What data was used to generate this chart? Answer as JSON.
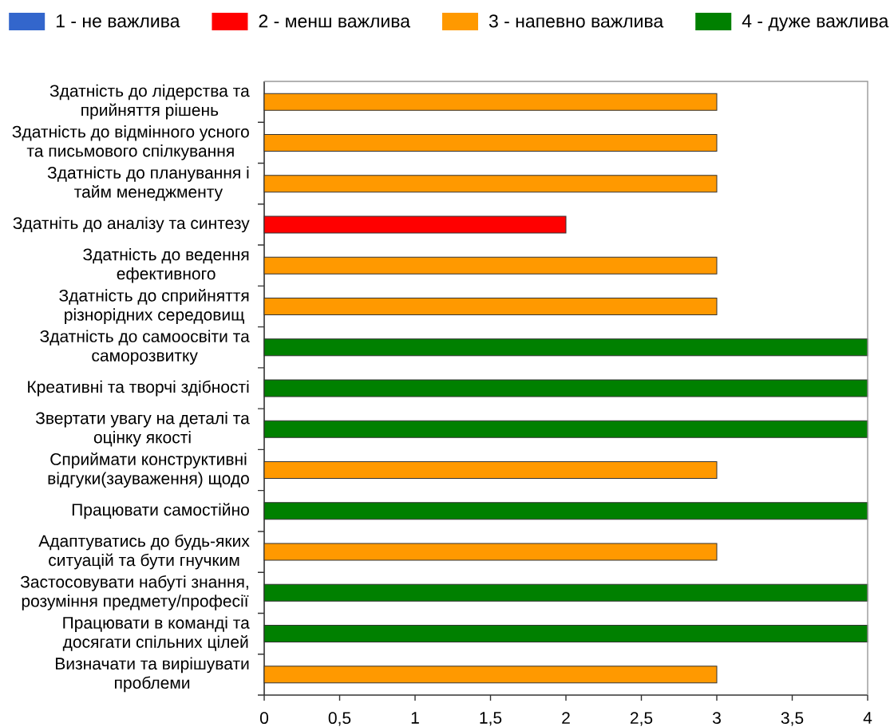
{
  "chart_data": {
    "type": "bar",
    "orientation": "horizontal",
    "categories": [
      "Здатність до лідерства та прийняття рішень",
      "Здатність до відмінного усного та письмового спілкування",
      "Здатність до планування і тайм менеджменту",
      "Здатніть до аналізу та синтезу",
      "Здатність до ведення ефективного",
      "Здатність до сприйняття різнорідних середовищ",
      "Здатність до самоосвіти та саморозвитку",
      "Креативні та творчі здібності",
      "Звертати увагу на деталі та оцінку якості",
      "Сприймати конструктивні відгуки(зауваження) щодо",
      "Працювати самостійно",
      "Адаптуватись до будь-яких ситуацій та бути гнучким",
      "Застосовувати набуті знання, розуміння предмету/професії",
      "Працювати в команді та досягати спільних цілей",
      "Визначати та вирішувати проблеми"
    ],
    "series": [
      {
        "name": "1 - не важлива",
        "color": "#3366cc",
        "values": [
          null,
          null,
          null,
          null,
          null,
          null,
          null,
          null,
          null,
          null,
          null,
          null,
          null,
          null,
          null
        ]
      },
      {
        "name": "2 - менш важлива",
        "color": "#ff0000",
        "values": [
          null,
          null,
          null,
          2,
          null,
          null,
          null,
          null,
          null,
          null,
          null,
          null,
          null,
          null,
          null
        ]
      },
      {
        "name": "3 - напевно важлива",
        "color": "#ff9900",
        "values": [
          3,
          3,
          3,
          null,
          3,
          3,
          null,
          null,
          null,
          3,
          null,
          3,
          null,
          null,
          3
        ]
      },
      {
        "name": "4 - дуже важлива",
        "color": "#008000",
        "values": [
          null,
          null,
          null,
          null,
          null,
          null,
          4,
          4,
          4,
          null,
          4,
          null,
          4,
          4,
          null
        ]
      }
    ],
    "xlim": [
      0,
      4
    ],
    "xticks": [
      0,
      {
        "value": 0.5,
        "label": "0,5"
      },
      1,
      {
        "value": 1.5,
        "label": "1,5"
      },
      2,
      {
        "value": 2.5,
        "label": "2,5"
      },
      3,
      {
        "value": 3.5,
        "label": "3,5"
      },
      4
    ],
    "legend": "top"
  }
}
